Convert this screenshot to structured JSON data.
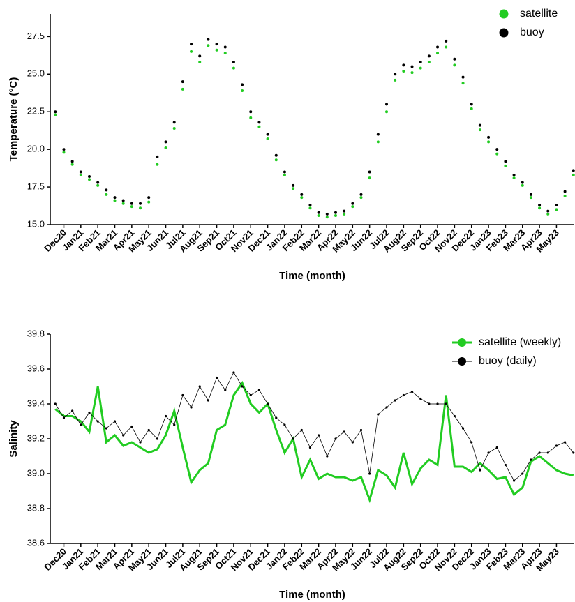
{
  "chart_data": [
    {
      "type": "scatter",
      "xlabel": "Time (month)",
      "ylabel": "Temperature (°C)",
      "legend": "upper right",
      "x": [
        -0.5,
        0,
        0.5,
        1,
        1.5,
        2,
        2.5,
        3,
        3.5,
        4,
        4.5,
        5,
        5.5,
        6,
        6.5,
        7,
        7.5,
        8,
        8.5,
        9,
        9.5,
        10,
        10.5,
        11,
        11.5,
        12,
        12.5,
        13,
        13.5,
        14,
        14.5,
        15,
        15.5,
        16,
        16.5,
        17,
        17.5,
        18,
        18.5,
        19,
        19.5,
        20,
        20.5,
        21,
        21.5,
        22,
        22.5,
        23,
        23.5,
        24,
        24.5,
        25,
        25.5,
        26,
        26.5,
        27,
        27.5,
        28,
        28.5,
        29,
        29.5,
        30
      ],
      "series": [
        {
          "name": "satellite",
          "color": "#22cc22",
          "values": [
            22.3,
            19.8,
            19.0,
            18.3,
            18.0,
            17.6,
            17.0,
            16.6,
            16.4,
            16.2,
            16.1,
            16.5,
            19.0,
            20.1,
            21.4,
            24.0,
            26.5,
            25.8,
            26.9,
            26.6,
            26.4,
            25.4,
            23.9,
            22.1,
            21.5,
            20.7,
            19.3,
            18.3,
            17.4,
            16.8,
            16.1,
            15.6,
            15.5,
            15.6,
            15.7,
            16.2,
            16.8,
            18.1,
            20.5,
            22.5,
            24.6,
            25.2,
            25.1,
            25.4,
            25.8,
            26.4,
            26.8,
            25.6,
            24.4,
            22.7,
            21.3,
            20.5,
            19.7,
            18.9,
            18.1,
            17.6,
            16.8,
            16.1,
            15.7,
            16.0,
            16.9,
            18.3
          ]
        },
        {
          "name": "buoy",
          "color": "#000000",
          "values": [
            22.5,
            20.0,
            19.2,
            18.5,
            18.2,
            17.8,
            17.3,
            16.8,
            16.6,
            16.4,
            16.4,
            16.8,
            19.5,
            20.5,
            21.8,
            24.5,
            27.0,
            26.2,
            27.3,
            27.0,
            26.8,
            25.8,
            24.3,
            22.5,
            21.8,
            21.0,
            19.6,
            18.5,
            17.6,
            17.0,
            16.3,
            15.8,
            15.7,
            15.8,
            15.9,
            16.4,
            17.0,
            18.5,
            21.0,
            23.0,
            25.0,
            25.6,
            25.5,
            25.8,
            26.2,
            26.8,
            27.2,
            26.0,
            24.8,
            23.0,
            21.6,
            20.8,
            20.0,
            19.2,
            18.3,
            17.8,
            17.0,
            16.3,
            15.9,
            16.3,
            17.2,
            18.6
          ]
        }
      ],
      "xlim": [
        -0.8,
        30.05
      ],
      "ylim": [
        15,
        29
      ],
      "xticks": [
        {
          "value": 0,
          "label": "Dec20"
        },
        {
          "value": 1,
          "label": "Jan21"
        },
        {
          "value": 2,
          "label": "Feb21"
        },
        {
          "value": 3,
          "label": "Mar21"
        },
        {
          "value": 4,
          "label": "Apr21"
        },
        {
          "value": 5,
          "label": "May21"
        },
        {
          "value": 6,
          "label": "Jun21"
        },
        {
          "value": 7,
          "label": "Jul21"
        },
        {
          "value": 8,
          "label": "Aug21"
        },
        {
          "value": 9,
          "label": "Sep21"
        },
        {
          "value": 10,
          "label": "Oct21"
        },
        {
          "value": 11,
          "label": "Nov21"
        },
        {
          "value": 12,
          "label": "Dec21"
        },
        {
          "value": 13,
          "label": "Jan22"
        },
        {
          "value": 14,
          "label": "Feb22"
        },
        {
          "value": 15,
          "label": "Mar22"
        },
        {
          "value": 16,
          "label": "Apr22"
        },
        {
          "value": 17,
          "label": "May22"
        },
        {
          "value": 18,
          "label": "Jun22"
        },
        {
          "value": 19,
          "label": "Jul22"
        },
        {
          "value": 20,
          "label": "Aug22"
        },
        {
          "value": 21,
          "label": "Sep22"
        },
        {
          "value": 22,
          "label": "Oct22"
        },
        {
          "value": 23,
          "label": "Nov22"
        },
        {
          "value": 24,
          "label": "Dec22"
        },
        {
          "value": 25,
          "label": "Jan23"
        },
        {
          "value": 26,
          "label": "Feb23"
        },
        {
          "value": 27,
          "label": "Mar23"
        },
        {
          "value": 28,
          "label": "Apr23"
        },
        {
          "value": 29,
          "label": "May23"
        }
      ],
      "yticks": [
        {
          "value": 15,
          "label": "15.0"
        },
        17.5,
        {
          "value": 20,
          "label": "20.0"
        },
        22.5,
        {
          "value": 25,
          "label": "25.0"
        },
        27.5
      ]
    },
    {
      "type": "line",
      "xlabel": "Time (month)",
      "ylabel": "Salinity",
      "legend": "upper right",
      "x": [
        -0.5,
        0,
        0.5,
        1,
        1.5,
        2,
        2.5,
        3,
        3.5,
        4,
        4.5,
        5,
        5.5,
        6,
        6.5,
        7,
        7.5,
        8,
        8.5,
        9,
        9.5,
        10,
        10.5,
        11,
        11.5,
        12,
        12.5,
        13,
        13.5,
        14,
        14.5,
        15,
        15.5,
        16,
        16.5,
        17,
        17.5,
        18,
        18.5,
        19,
        19.5,
        20,
        20.5,
        21,
        21.5,
        22,
        22.5,
        23,
        23.5,
        24,
        24.5,
        25,
        25.5,
        26,
        26.5,
        27,
        27.5,
        28,
        28.5,
        29,
        29.5,
        30
      ],
      "series": [
        {
          "name": "satellite (weekly)",
          "color": "#22cc22",
          "values": [
            39.37,
            39.33,
            39.33,
            39.3,
            39.24,
            39.5,
            39.18,
            39.22,
            39.16,
            39.18,
            39.15,
            39.12,
            39.14,
            39.22,
            39.36,
            39.15,
            38.95,
            39.02,
            39.06,
            39.25,
            39.28,
            39.45,
            39.52,
            39.4,
            39.35,
            39.4,
            39.25,
            39.12,
            39.2,
            38.98,
            39.08,
            38.97,
            39.0,
            38.98,
            38.98,
            38.96,
            38.98,
            38.85,
            39.02,
            38.99,
            38.92,
            39.12,
            38.94,
            39.03,
            39.08,
            39.05,
            39.45,
            39.04,
            39.04,
            39.01,
            39.06,
            39.02,
            38.97,
            38.98,
            38.88,
            38.92,
            39.07,
            39.1,
            39.06,
            39.02,
            39.0,
            38.99
          ]
        },
        {
          "name": "buoy (daily)",
          "color": "#000000",
          "values": [
            39.4,
            39.32,
            39.36,
            39.28,
            39.35,
            39.3,
            39.26,
            39.3,
            39.22,
            39.27,
            39.18,
            39.25,
            39.2,
            39.33,
            39.28,
            39.45,
            39.38,
            39.5,
            39.42,
            39.55,
            39.48,
            39.58,
            39.5,
            39.45,
            39.48,
            39.4,
            39.32,
            39.28,
            39.2,
            39.25,
            39.15,
            39.22,
            39.1,
            39.2,
            39.24,
            39.18,
            39.25,
            39.0,
            39.34,
            39.38,
            39.42,
            39.45,
            39.47,
            39.43,
            39.4,
            39.4,
            39.4,
            39.33,
            39.26,
            39.18,
            39.02,
            39.12,
            39.15,
            39.05,
            38.96,
            39.0,
            39.08,
            39.12,
            39.12,
            39.16,
            39.18,
            39.12
          ]
        }
      ],
      "xlim": [
        -0.8,
        30.05
      ],
      "ylim": [
        38.6,
        39.8
      ],
      "xticks": [
        {
          "value": 0,
          "label": "Dec20"
        },
        {
          "value": 1,
          "label": "Jan21"
        },
        {
          "value": 2,
          "label": "Feb21"
        },
        {
          "value": 3,
          "label": "Mar21"
        },
        {
          "value": 4,
          "label": "Apr21"
        },
        {
          "value": 5,
          "label": "May21"
        },
        {
          "value": 6,
          "label": "Jun21"
        },
        {
          "value": 7,
          "label": "Jul21"
        },
        {
          "value": 8,
          "label": "Aug21"
        },
        {
          "value": 9,
          "label": "Sep21"
        },
        {
          "value": 10,
          "label": "Oct21"
        },
        {
          "value": 11,
          "label": "Nov21"
        },
        {
          "value": 12,
          "label": "Dec21"
        },
        {
          "value": 13,
          "label": "Jan22"
        },
        {
          "value": 14,
          "label": "Feb22"
        },
        {
          "value": 15,
          "label": "Mar22"
        },
        {
          "value": 16,
          "label": "Apr22"
        },
        {
          "value": 17,
          "label": "May22"
        },
        {
          "value": 18,
          "label": "Jun22"
        },
        {
          "value": 19,
          "label": "Jul22"
        },
        {
          "value": 20,
          "label": "Aug22"
        },
        {
          "value": 21,
          "label": "Sep22"
        },
        {
          "value": 22,
          "label": "Oct22"
        },
        {
          "value": 23,
          "label": "Nov22"
        },
        {
          "value": 24,
          "label": "Dec22"
        },
        {
          "value": 25,
          "label": "Jan23"
        },
        {
          "value": 26,
          "label": "Feb23"
        },
        {
          "value": 27,
          "label": "Mar23"
        },
        {
          "value": 28,
          "label": "Apr23"
        },
        {
          "value": 29,
          "label": "May23"
        }
      ],
      "yticks": [
        38.6,
        38.8,
        {
          "value": 39,
          "label": "39.0"
        },
        39.2,
        39.4,
        39.6,
        39.8
      ]
    }
  ]
}
